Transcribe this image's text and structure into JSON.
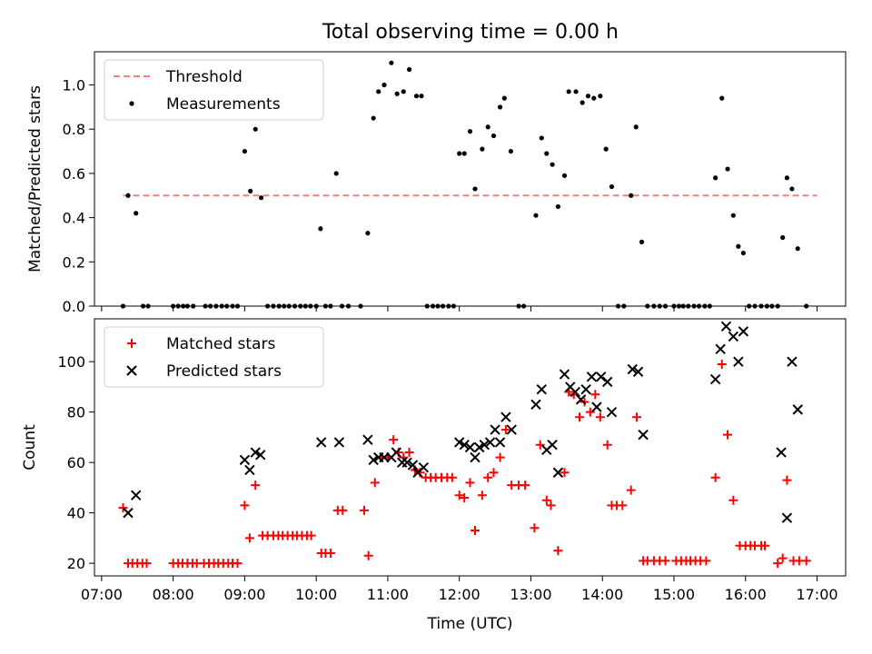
{
  "figure_title": "Total observing time = 0.00 h",
  "chart_data": [
    {
      "type": "scatter",
      "ylabel": "Matched/Predicted stars",
      "xlabel": "",
      "xlim": [
        6.9,
        17.4
      ],
      "ylim": [
        0,
        1.15
      ],
      "yticks": [
        0.0,
        0.2,
        0.4,
        0.6,
        0.8,
        1.0
      ],
      "ytick_labels": [
        "0.0",
        "0.2",
        "0.4",
        "0.6",
        "0.8",
        "1.0"
      ],
      "legend_position": "upper-left",
      "threshold": {
        "name": "Threshold",
        "value": 0.5,
        "x_range": [
          7.3,
          17.0
        ],
        "color": "#ff7b7b"
      },
      "series": [
        {
          "name": "Measurements",
          "color": "#000000",
          "x": [
            7.3,
            7.37,
            7.48,
            7.58,
            7.65,
            8.0,
            8.07,
            8.14,
            8.2,
            8.28,
            8.45,
            8.52,
            8.6,
            8.68,
            8.75,
            8.83,
            8.9,
            9.0,
            9.08,
            9.15,
            9.23,
            9.32,
            9.4,
            9.48,
            9.55,
            9.62,
            9.7,
            9.78,
            9.85,
            9.92,
            10.0,
            10.06,
            10.13,
            10.2,
            10.28,
            10.36,
            10.45,
            10.62,
            10.72,
            10.8,
            10.87,
            10.95,
            11.05,
            11.13,
            11.22,
            11.3,
            11.4,
            11.47,
            11.55,
            11.63,
            11.7,
            11.77,
            11.85,
            11.92,
            12.0,
            12.07,
            12.15,
            12.22,
            12.32,
            12.4,
            12.48,
            12.57,
            12.63,
            12.72,
            12.83,
            12.9,
            13.07,
            13.15,
            13.22,
            13.3,
            13.38,
            13.47,
            13.53,
            13.63,
            13.72,
            13.8,
            13.88,
            13.97,
            14.05,
            14.13,
            14.22,
            14.3,
            14.4,
            14.47,
            14.55,
            14.63,
            14.72,
            14.8,
            14.88,
            15.0,
            15.07,
            15.13,
            15.2,
            15.28,
            15.35,
            15.43,
            15.5,
            15.58,
            15.67,
            15.75,
            15.83,
            15.9,
            15.97,
            16.05,
            16.13,
            16.22,
            16.3,
            16.37,
            16.45,
            16.52,
            16.58,
            16.65,
            16.73,
            16.85
          ],
          "y": [
            0.0,
            0.5,
            0.42,
            0.0,
            0.0,
            0.0,
            0.0,
            0.0,
            0.0,
            0.0,
            0.0,
            0.0,
            0.0,
            0.0,
            0.0,
            0.0,
            0.0,
            0.7,
            0.52,
            0.8,
            0.49,
            0.0,
            0.0,
            0.0,
            0.0,
            0.0,
            0.0,
            0.0,
            0.0,
            0.0,
            0.0,
            0.35,
            0.0,
            0.0,
            0.6,
            0.0,
            0.0,
            0.0,
            0.33,
            0.85,
            0.97,
            1.0,
            1.1,
            0.96,
            0.97,
            1.07,
            0.95,
            0.95,
            0.0,
            0.0,
            0.0,
            0.0,
            0.0,
            0.0,
            0.69,
            0.69,
            0.79,
            0.53,
            0.71,
            0.81,
            0.77,
            0.9,
            0.94,
            0.7,
            0.0,
            0.0,
            0.41,
            0.76,
            0.69,
            0.64,
            0.45,
            0.59,
            0.97,
            0.97,
            0.92,
            0.95,
            0.94,
            0.95,
            0.71,
            0.54,
            0.0,
            0.0,
            0.5,
            0.81,
            0.29,
            0.0,
            0.0,
            0.0,
            0.0,
            0.0,
            0.0,
            0.0,
            0.0,
            0.0,
            0.0,
            0.0,
            0.0,
            0.58,
            0.94,
            0.62,
            0.41,
            0.27,
            0.24,
            0.0,
            0.0,
            0.0,
            0.0,
            0.0,
            0.0,
            0.31,
            0.58,
            0.53,
            0.26,
            0.0
          ]
        }
      ]
    },
    {
      "type": "scatter",
      "ylabel": "Count",
      "xlabel": "Time (UTC)",
      "xlim": [
        6.9,
        17.4
      ],
      "ylim": [
        15,
        117
      ],
      "yticks": [
        20,
        40,
        60,
        80,
        100
      ],
      "ytick_labels": [
        "20",
        "40",
        "60",
        "80",
        "100"
      ],
      "xticks": [
        7,
        8,
        9,
        10,
        11,
        12,
        13,
        14,
        15,
        16,
        17
      ],
      "xtick_labels": [
        "07:00",
        "08:00",
        "09:00",
        "10:00",
        "11:00",
        "12:00",
        "13:00",
        "14:00",
        "15:00",
        "16:00",
        "17:00"
      ],
      "legend_position": "upper-left",
      "series": [
        {
          "name": "Matched stars",
          "color": "#ff0000",
          "x": [
            7.3,
            7.37,
            7.43,
            7.5,
            7.57,
            7.63,
            8.0,
            8.07,
            8.13,
            8.2,
            8.27,
            8.33,
            8.43,
            8.5,
            8.57,
            8.63,
            8.7,
            8.77,
            8.83,
            8.9,
            9.0,
            9.07,
            9.15,
            9.25,
            9.32,
            9.4,
            9.47,
            9.53,
            9.6,
            9.67,
            9.73,
            9.8,
            9.87,
            9.93,
            10.07,
            10.13,
            10.2,
            10.3,
            10.37,
            10.67,
            10.73,
            10.82,
            10.92,
            11.0,
            11.08,
            11.15,
            11.22,
            11.3,
            11.38,
            11.45,
            11.53,
            11.6,
            11.67,
            11.75,
            11.83,
            11.9,
            12.0,
            12.07,
            12.15,
            12.22,
            12.32,
            12.4,
            12.48,
            12.57,
            12.65,
            12.73,
            12.83,
            12.92,
            13.05,
            13.13,
            13.22,
            13.28,
            13.38,
            13.47,
            13.53,
            13.6,
            13.68,
            13.75,
            13.83,
            13.9,
            13.97,
            14.07,
            14.13,
            14.2,
            14.28,
            14.4,
            14.48,
            14.57,
            14.63,
            14.72,
            14.8,
            14.88,
            15.03,
            15.1,
            15.17,
            15.23,
            15.3,
            15.37,
            15.45,
            15.58,
            15.67,
            15.75,
            15.83,
            15.92,
            16.0,
            16.07,
            16.13,
            16.22,
            16.27,
            16.45,
            16.52,
            16.58,
            16.67,
            16.75,
            16.85
          ],
          "y": [
            42,
            20,
            20,
            20,
            20,
            20,
            20,
            20,
            20,
            20,
            20,
            20,
            20,
            20,
            20,
            20,
            20,
            20,
            20,
            20,
            43,
            30,
            51,
            31,
            31,
            31,
            31,
            31,
            31,
            31,
            31,
            31,
            31,
            31,
            24,
            24,
            24,
            41,
            41,
            41,
            23,
            52,
            62,
            62,
            69,
            64,
            62,
            64,
            57,
            56,
            54,
            54,
            54,
            54,
            54,
            54,
            47,
            46,
            52,
            33,
            47,
            54,
            56,
            62,
            73,
            51,
            51,
            51,
            34,
            67,
            45,
            43,
            25,
            56,
            88,
            87,
            78,
            84,
            80,
            87,
            78,
            67,
            43,
            43,
            43,
            49,
            78,
            21,
            21,
            21,
            21,
            21,
            21,
            21,
            21,
            21,
            21,
            21,
            21,
            54,
            99,
            71,
            45,
            27,
            27,
            27,
            27,
            27,
            27,
            20,
            22,
            53,
            21,
            21,
            21
          ]
        },
        {
          "name": "Predicted stars",
          "color": "#000000",
          "x": [
            7.37,
            7.48,
            9.0,
            9.07,
            9.15,
            9.22,
            10.07,
            10.32,
            10.72,
            10.8,
            10.87,
            10.95,
            11.05,
            11.12,
            11.2,
            11.27,
            11.35,
            11.42,
            11.5,
            12.0,
            12.07,
            12.15,
            12.22,
            12.28,
            12.35,
            12.43,
            12.5,
            12.57,
            12.65,
            12.73,
            13.07,
            13.15,
            13.22,
            13.3,
            13.38,
            13.47,
            13.55,
            13.62,
            13.7,
            13.77,
            13.85,
            13.92,
            13.98,
            14.07,
            14.13,
            14.42,
            14.5,
            14.57,
            15.58,
            15.65,
            15.73,
            15.83,
            15.9,
            15.97,
            16.5,
            16.58,
            16.65,
            16.73
          ],
          "y": [
            40,
            47,
            61,
            57,
            64,
            63,
            68,
            68,
            69,
            61,
            62,
            62,
            62,
            64,
            60,
            60,
            59,
            56,
            58,
            68,
            67,
            66,
            62,
            66,
            67,
            68,
            73,
            68,
            78,
            73,
            83,
            89,
            65,
            67,
            56,
            95,
            90,
            88,
            85,
            89,
            94,
            82,
            94,
            92,
            80,
            97,
            96,
            71,
            93,
            105,
            114,
            110,
            100,
            112,
            64,
            38,
            100,
            81
          ]
        }
      ]
    }
  ]
}
